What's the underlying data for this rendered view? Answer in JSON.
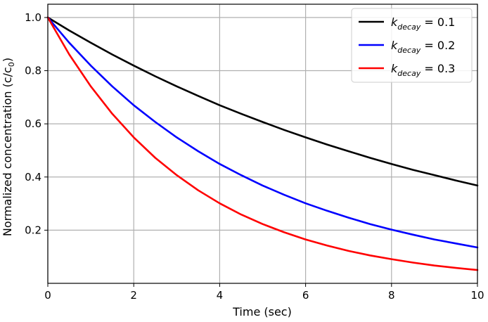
{
  "chart_data": {
    "type": "line",
    "title": "",
    "xlabel": "Time (sec)",
    "ylabel": "Normalized concentration (c/c",
    "ylabel_sub": "0",
    "ylabel_close": ")",
    "xlim": [
      0,
      10
    ],
    "ylim": [
      0.0,
      1.05
    ],
    "xticks": [
      "0",
      "2",
      "4",
      "6",
      "8",
      "10"
    ],
    "yticks": [
      "0.2",
      "0.4",
      "0.6",
      "0.8",
      "1.0"
    ],
    "grid": true,
    "legend_position": "top-right",
    "series": [
      {
        "name_main": "k",
        "name_sub": "decay",
        "name_rest": " = 0.1",
        "color": "#000000",
        "x": [
          0,
          0.5,
          1,
          1.5,
          2,
          2.5,
          3,
          3.5,
          4,
          4.5,
          5,
          5.5,
          6,
          6.5,
          7,
          7.5,
          8,
          8.5,
          9,
          9.5,
          10
        ],
        "y": [
          1.0,
          0.951,
          0.905,
          0.861,
          0.819,
          0.779,
          0.741,
          0.705,
          0.67,
          0.638,
          0.607,
          0.577,
          0.549,
          0.522,
          0.497,
          0.472,
          0.449,
          0.427,
          0.407,
          0.387,
          0.368
        ]
      },
      {
        "name_main": "k",
        "name_sub": "decay",
        "name_rest": " = 0.2",
        "color": "#0000ff",
        "x": [
          0,
          0.5,
          1,
          1.5,
          2,
          2.5,
          3,
          3.5,
          4,
          4.5,
          5,
          5.5,
          6,
          6.5,
          7,
          7.5,
          8,
          8.5,
          9,
          9.5,
          10
        ],
        "y": [
          1.0,
          0.905,
          0.819,
          0.741,
          0.67,
          0.607,
          0.549,
          0.497,
          0.449,
          0.407,
          0.368,
          0.333,
          0.301,
          0.273,
          0.247,
          0.223,
          0.202,
          0.183,
          0.165,
          0.15,
          0.135
        ]
      },
      {
        "name_main": "k",
        "name_sub": "decay",
        "name_rest": " = 0.3",
        "color": "#ff0000",
        "x": [
          0,
          0.5,
          1,
          1.5,
          2,
          2.5,
          3,
          3.5,
          4,
          4.5,
          5,
          5.5,
          6,
          6.5,
          7,
          7.5,
          8,
          8.5,
          9,
          9.5,
          10
        ],
        "y": [
          1.0,
          0.861,
          0.741,
          0.638,
          0.549,
          0.472,
          0.407,
          0.35,
          0.301,
          0.259,
          0.223,
          0.192,
          0.165,
          0.142,
          0.122,
          0.105,
          0.091,
          0.078,
          0.067,
          0.058,
          0.05
        ]
      }
    ]
  }
}
